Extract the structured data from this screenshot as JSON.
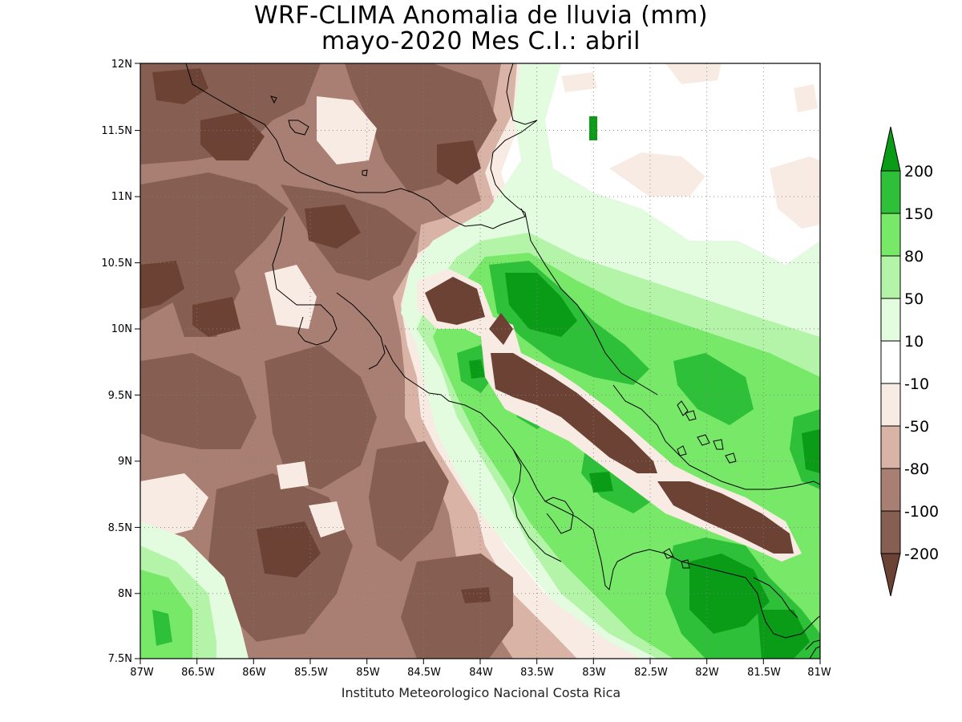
{
  "title": {
    "line1": "WRF-CLIMA Anomalia de lluvia (mm)",
    "line2": "mayo-2020 Mes C.I.: abril"
  },
  "credit": "Instituto Meteorologico Nacional Costa Rica",
  "map": {
    "lon_range": [
      -87,
      -81
    ],
    "lat_range": [
      7.5,
      12
    ],
    "x_ticks": [
      "87W",
      "86.5W",
      "86W",
      "85.5W",
      "85W",
      "84.5W",
      "84W",
      "83.5W",
      "83W",
      "82.5W",
      "82W",
      "81.5W",
      "81W"
    ],
    "y_ticks": [
      "7.5N",
      "8N",
      "8.5N",
      "9N",
      "9.5N",
      "10N",
      "10.5N",
      "11N",
      "11.5N",
      "12N"
    ],
    "grid": "dotted"
  },
  "colorbar": {
    "labels": [
      "200",
      "150",
      "80",
      "50",
      "10",
      "-10",
      "-50",
      "-80",
      "-100",
      "-200"
    ],
    "colors": {
      "above_200": "#0a9b17",
      "150_200": "#2fc03a",
      "80_150": "#78e868",
      "50_80": "#b3f4a9",
      "10_50": "#e3fbdf",
      "m10_10": "#ffffff",
      "m50_m10": "#f8ebe3",
      "m80_m50": "#d9b3a6",
      "m100_m80": "#a87f72",
      "m200_m100": "#875f52",
      "below_m200": "#6b4234"
    }
  }
}
